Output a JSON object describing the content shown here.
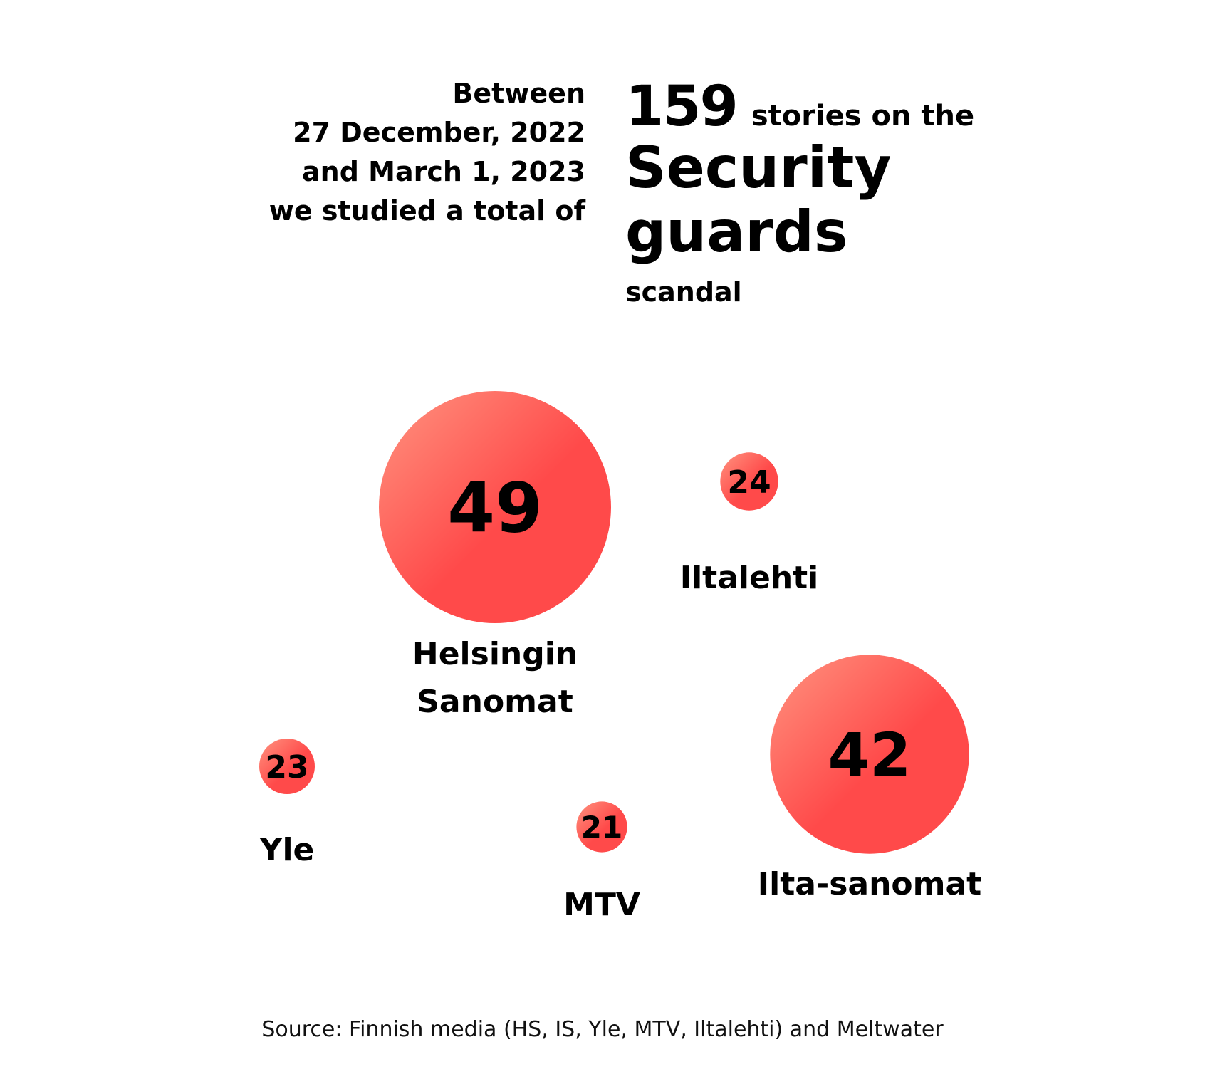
{
  "intro": {
    "lines": [
      "Between",
      "27 December, 2022",
      "and March 1, 2023",
      "we studied a total of"
    ]
  },
  "headline": {
    "count": "159",
    "stories_text": "stories on the",
    "topic_line1": "Security",
    "topic_line2": "guards",
    "suffix": "scandal"
  },
  "chart_data": {
    "type": "bubble",
    "title": "",
    "bubble_color_light": "#ff9480",
    "bubble_color_dark": "#ff4a4a",
    "points": [
      {
        "label": [
          "Helsingin",
          "Sanomat"
        ],
        "value": 49
      },
      {
        "label": [
          "Iltalehti"
        ],
        "value": 24
      },
      {
        "label": [
          "Yle"
        ],
        "value": 23
      },
      {
        "label": [
          "MTV"
        ],
        "value": 21
      },
      {
        "label": [
          "Ilta-sanomat"
        ],
        "value": 42
      }
    ]
  },
  "source": "Source: Finnish media (HS, IS, Yle, MTV, Iltalehti) and Meltwater"
}
